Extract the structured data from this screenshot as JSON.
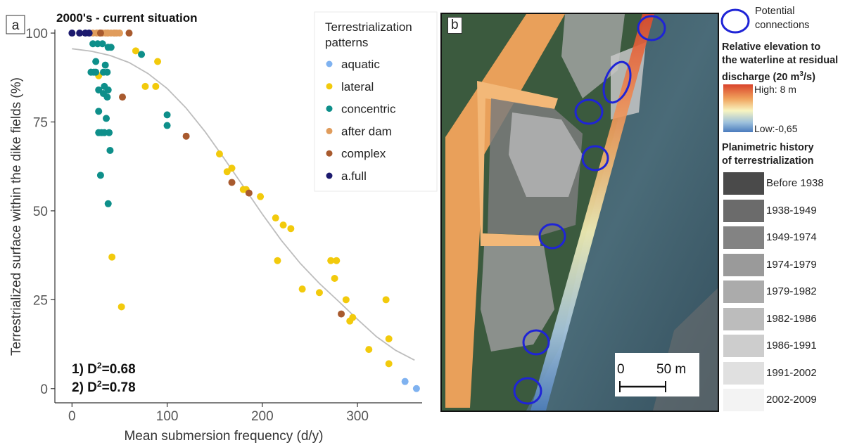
{
  "chart_data": {
    "type": "scatter",
    "panel_tag": "a",
    "title": "2000's  - current situation",
    "xlabel": "Mean submersion frequency (d/y)",
    "ylabel": "Terrestrialized surface within the dike fields (%)",
    "xlim": [
      -18,
      368
    ],
    "ylim": [
      -4,
      101
    ],
    "xticks": [
      0,
      100,
      200,
      300
    ],
    "yticks": [
      0,
      25,
      50,
      75,
      100
    ],
    "grid": false,
    "legend_title": [
      "Terrestrialization",
      "patterns"
    ],
    "legend_position": "top-right",
    "annotations": [
      "1) D",
      "=0.68",
      "2) D",
      "=0.78"
    ],
    "annotation_superscript": "2",
    "series": [
      {
        "name": "aquatic",
        "color": "#7fb2f0",
        "points": [
          [
            350,
            2
          ],
          [
            362,
            0
          ]
        ]
      },
      {
        "name": "lateral",
        "color": "#f2ca0c",
        "points": [
          [
            67,
            95
          ],
          [
            28,
            88
          ],
          [
            77,
            85
          ],
          [
            88,
            85
          ],
          [
            90,
            92
          ],
          [
            42,
            37
          ],
          [
            52,
            23
          ],
          [
            155,
            66
          ],
          [
            163,
            61
          ],
          [
            168,
            62
          ],
          [
            180,
            56
          ],
          [
            183,
            56
          ],
          [
            198,
            54
          ],
          [
            214,
            48
          ],
          [
            222,
            46
          ],
          [
            230,
            45
          ],
          [
            216,
            36
          ],
          [
            242,
            28
          ],
          [
            260,
            27
          ],
          [
            272,
            36
          ],
          [
            276,
            31
          ],
          [
            278,
            36
          ],
          [
            288,
            25
          ],
          [
            292,
            19
          ],
          [
            295,
            20
          ],
          [
            312,
            11
          ],
          [
            330,
            25
          ],
          [
            333,
            14
          ],
          [
            333,
            7
          ]
        ]
      },
      {
        "name": "concentric",
        "color": "#0e8f8a",
        "points": [
          [
            22,
            97
          ],
          [
            25,
            92
          ],
          [
            27,
            97
          ],
          [
            23,
            89
          ],
          [
            20,
            89
          ],
          [
            25,
            89
          ],
          [
            32,
            97
          ],
          [
            38,
            96
          ],
          [
            41,
            96
          ],
          [
            35,
            91
          ],
          [
            33,
            89
          ],
          [
            37,
            89
          ],
          [
            28,
            84
          ],
          [
            34,
            85
          ],
          [
            33,
            83
          ],
          [
            38,
            84
          ],
          [
            37,
            82
          ],
          [
            28,
            78
          ],
          [
            36,
            76
          ],
          [
            28,
            72
          ],
          [
            31,
            72
          ],
          [
            34,
            72
          ],
          [
            39,
            72
          ],
          [
            40,
            67
          ],
          [
            30,
            60
          ],
          [
            38,
            52
          ],
          [
            73,
            94
          ],
          [
            100,
            77
          ],
          [
            100,
            74
          ]
        ]
      },
      {
        "name": "after dam",
        "color": "#e09c5c",
        "points": [
          [
            22,
            100
          ],
          [
            26,
            100
          ],
          [
            29,
            100
          ],
          [
            32,
            100
          ],
          [
            35,
            100
          ],
          [
            38,
            100
          ],
          [
            41,
            100
          ],
          [
            44,
            100
          ],
          [
            47,
            100
          ],
          [
            50,
            100
          ],
          [
            37,
            100
          ],
          [
            45,
            100
          ]
        ]
      },
      {
        "name": "complex",
        "color": "#a85a2e",
        "points": [
          [
            30,
            100
          ],
          [
            60,
            100
          ],
          [
            53,
            82
          ],
          [
            120,
            71
          ],
          [
            168,
            58
          ],
          [
            186,
            55
          ],
          [
            283,
            21
          ]
        ]
      },
      {
        "name": "a.full",
        "color": "#1c1a6e",
        "points": [
          [
            0,
            100
          ],
          [
            8,
            100
          ],
          [
            14,
            100
          ],
          [
            18,
            100
          ]
        ]
      }
    ],
    "fit_curve": {
      "color": "#bdbdbd",
      "points": [
        [
          0,
          95.6
        ],
        [
          20,
          94.9
        ],
        [
          40,
          93.7
        ],
        [
          60,
          91.7
        ],
        [
          80,
          88.6
        ],
        [
          100,
          84.4
        ],
        [
          120,
          78.9
        ],
        [
          140,
          72.2
        ],
        [
          160,
          64.7
        ],
        [
          180,
          56.9
        ],
        [
          200,
          49.1
        ],
        [
          220,
          41.7
        ],
        [
          240,
          35.2
        ],
        [
          260,
          29.6
        ],
        [
          280,
          24.6
        ],
        [
          300,
          19.5
        ],
        [
          320,
          14.6
        ],
        [
          340,
          10.8
        ],
        [
          360,
          8
        ]
      ]
    }
  },
  "panel_b": {
    "tag": "b",
    "scale_bar": {
      "start_label": "0",
      "end_label": "50 m"
    }
  },
  "legend_b": {
    "circle_label": [
      "Potential",
      "connections"
    ],
    "elevation_title": [
      "Relative elevation to",
      "the waterline at residual",
      "discharge (20 m",
      "3",
      "/s)"
    ],
    "elevation_high": "High: 8 m",
    "elevation_low": "Low:-0,65",
    "history_title": [
      "Planimetric history",
      "of terrestrialization"
    ],
    "history": [
      {
        "label": "Before 1938",
        "color": "#4a4a4a"
      },
      {
        "label": "1938-1949",
        "color": "#6b6b6b"
      },
      {
        "label": "1949-1974",
        "color": "#838383"
      },
      {
        "label": "1974-1979",
        "color": "#9a9a9a"
      },
      {
        "label": "1979-1982",
        "color": "#ababab"
      },
      {
        "label": "1982-1986",
        "color": "#bcbcbc"
      },
      {
        "label": "1986-1991",
        "color": "#cdcdcd"
      },
      {
        "label": "1991-2002",
        "color": "#e0e0e0"
      },
      {
        "label": "2002-2009",
        "color": "#f3f3f3"
      }
    ]
  }
}
